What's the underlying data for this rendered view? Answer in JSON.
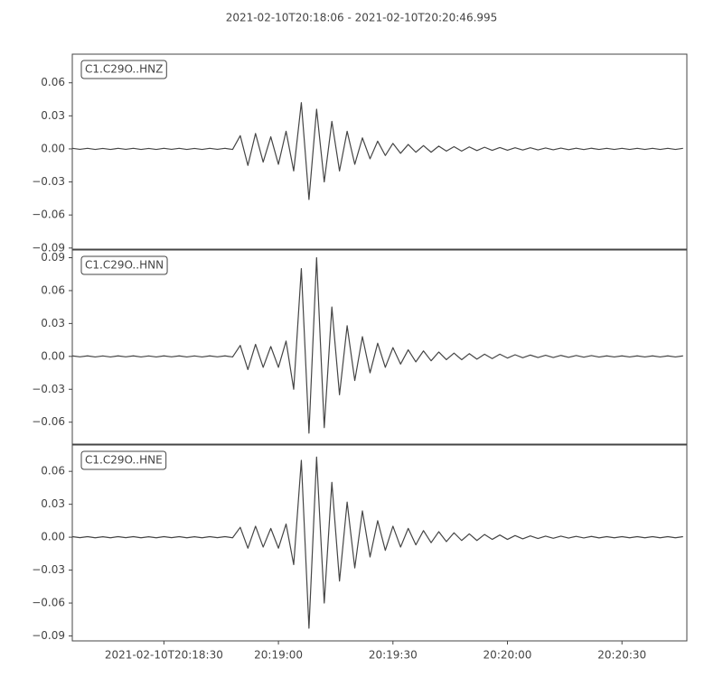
{
  "chart_data": [
    {
      "type": "line",
      "title": "2021-02-10T20:18:06  -  2021-02-10T20:20:46.995",
      "label": "C1.C29O..HNZ",
      "x": [
        0,
        2,
        4,
        6,
        8,
        10,
        12,
        14,
        16,
        18,
        20,
        22,
        24,
        26,
        28,
        30,
        32,
        34,
        36,
        38,
        40,
        42,
        44,
        46,
        48,
        50,
        52,
        54,
        56,
        58,
        60,
        62,
        64,
        66,
        68,
        70,
        72,
        74,
        76,
        78,
        80,
        82,
        84,
        86,
        88,
        90,
        92,
        94,
        96,
        98,
        100,
        102,
        104,
        106,
        108,
        110,
        112,
        114,
        116,
        118,
        120,
        122,
        124,
        126,
        128,
        130,
        132,
        134,
        136,
        138,
        140,
        142,
        144,
        146,
        148,
        150,
        152,
        154,
        156,
        158,
        160
      ],
      "series": [
        {
          "name": "C1.C29O..HNZ",
          "color": "#454545",
          "values": [
            0.0005,
            -0.0004,
            0.0005,
            -0.0005,
            0.0004,
            -0.0005,
            0.0005,
            -0.0004,
            0.0005,
            -0.0005,
            0.0004,
            -0.0005,
            0.0005,
            -0.0004,
            0.0005,
            -0.0005,
            0.0004,
            -0.0005,
            0.0005,
            -0.0004,
            0.0005,
            -0.0005,
            0.012,
            -0.015,
            0.014,
            -0.012,
            0.011,
            -0.014,
            0.016,
            -0.02,
            0.042,
            -0.046,
            0.036,
            -0.03,
            0.025,
            -0.02,
            0.016,
            -0.014,
            0.01,
            -0.009,
            0.007,
            -0.006,
            0.005,
            -0.004,
            0.004,
            -0.003,
            0.003,
            -0.003,
            0.0025,
            -0.002,
            0.002,
            -0.002,
            0.0018,
            -0.0015,
            0.0015,
            -0.0013,
            0.0012,
            -0.0012,
            0.001,
            -0.001,
            0.001,
            -0.0009,
            0.0008,
            -0.0008,
            0.0007,
            -0.0007,
            0.0006,
            -0.0006,
            0.0006,
            -0.0005,
            0.0005,
            -0.0005,
            0.0005,
            -0.0005,
            0.0005,
            -0.0005,
            0.0005,
            -0.0005,
            0.0005,
            -0.0005,
            0.0005
          ]
        }
      ],
      "xlim": [
        0,
        160.995
      ],
      "ylim": [
        -0.091,
        0.086
      ],
      "yticks": [
        {
          "value": -0.09,
          "label": "−0.09"
        },
        {
          "value": -0.06,
          "label": "−0.06"
        },
        {
          "value": -0.03,
          "label": "−0.03"
        },
        {
          "value": 0,
          "label": "0.00"
        },
        {
          "value": 0.03,
          "label": "0.03"
        },
        {
          "value": 0.06,
          "label": "0.06"
        }
      ]
    },
    {
      "type": "line",
      "label": "C1.C29O..HNN",
      "x": [
        0,
        2,
        4,
        6,
        8,
        10,
        12,
        14,
        16,
        18,
        20,
        22,
        24,
        26,
        28,
        30,
        32,
        34,
        36,
        38,
        40,
        42,
        44,
        46,
        48,
        50,
        52,
        54,
        56,
        58,
        60,
        62,
        64,
        66,
        68,
        70,
        72,
        74,
        76,
        78,
        80,
        82,
        84,
        86,
        88,
        90,
        92,
        94,
        96,
        98,
        100,
        102,
        104,
        106,
        108,
        110,
        112,
        114,
        116,
        118,
        120,
        122,
        124,
        126,
        128,
        130,
        132,
        134,
        136,
        138,
        140,
        142,
        144,
        146,
        148,
        150,
        152,
        154,
        156,
        158,
        160
      ],
      "series": [
        {
          "name": "C1.C29O..HNN",
          "color": "#454545",
          "values": [
            0.0005,
            -0.0004,
            0.0005,
            -0.0005,
            0.0004,
            -0.0005,
            0.0005,
            -0.0004,
            0.0005,
            -0.0005,
            0.0004,
            -0.0005,
            0.0005,
            -0.0004,
            0.0005,
            -0.0005,
            0.0004,
            -0.0005,
            0.0005,
            -0.0004,
            0.0005,
            -0.0005,
            0.01,
            -0.012,
            0.011,
            -0.01,
            0.009,
            -0.01,
            0.014,
            -0.03,
            0.08,
            -0.07,
            0.09,
            -0.065,
            0.045,
            -0.035,
            0.028,
            -0.022,
            0.018,
            -0.015,
            0.012,
            -0.01,
            0.008,
            -0.007,
            0.006,
            -0.005,
            0.005,
            -0.004,
            0.004,
            -0.003,
            0.003,
            -0.003,
            0.0025,
            -0.0025,
            0.002,
            -0.002,
            0.002,
            -0.0015,
            0.0015,
            -0.0012,
            0.0012,
            -0.001,
            0.001,
            -0.001,
            0.0009,
            -0.0008,
            0.0008,
            -0.0007,
            0.0007,
            -0.0006,
            0.0005,
            -0.0005,
            0.0005,
            -0.0005,
            0.0005,
            -0.0005,
            0.0005,
            -0.0005,
            0.0005,
            -0.0005,
            0.0005
          ]
        }
      ],
      "xlim": [
        0,
        160.995
      ],
      "ylim": [
        -0.08,
        0.097
      ],
      "yticks": [
        {
          "value": -0.06,
          "label": "−0.06"
        },
        {
          "value": -0.03,
          "label": "−0.03"
        },
        {
          "value": 0,
          "label": "0.00"
        },
        {
          "value": 0.03,
          "label": "0.03"
        },
        {
          "value": 0.06,
          "label": "0.06"
        },
        {
          "value": 0.09,
          "label": "0.09"
        }
      ]
    },
    {
      "type": "line",
      "label": "C1.C29O..HNE",
      "x": [
        0,
        2,
        4,
        6,
        8,
        10,
        12,
        14,
        16,
        18,
        20,
        22,
        24,
        26,
        28,
        30,
        32,
        34,
        36,
        38,
        40,
        42,
        44,
        46,
        48,
        50,
        52,
        54,
        56,
        58,
        60,
        62,
        64,
        66,
        68,
        70,
        72,
        74,
        76,
        78,
        80,
        82,
        84,
        86,
        88,
        90,
        92,
        94,
        96,
        98,
        100,
        102,
        104,
        106,
        108,
        110,
        112,
        114,
        116,
        118,
        120,
        122,
        124,
        126,
        128,
        130,
        132,
        134,
        136,
        138,
        140,
        142,
        144,
        146,
        148,
        150,
        152,
        154,
        156,
        158,
        160
      ],
      "series": [
        {
          "name": "C1.C29O..HNE",
          "color": "#454545",
          "values": [
            0.0005,
            -0.0004,
            0.0005,
            -0.0005,
            0.0004,
            -0.0005,
            0.0005,
            -0.0004,
            0.0005,
            -0.0005,
            0.0004,
            -0.0005,
            0.0005,
            -0.0004,
            0.0005,
            -0.0005,
            0.0004,
            -0.0005,
            0.0005,
            -0.0004,
            0.0005,
            -0.0005,
            0.009,
            -0.01,
            0.01,
            -0.009,
            0.008,
            -0.01,
            0.012,
            -0.025,
            0.07,
            -0.083,
            0.073,
            -0.06,
            0.05,
            -0.04,
            0.032,
            -0.028,
            0.024,
            -0.018,
            0.015,
            -0.012,
            0.01,
            -0.009,
            0.008,
            -0.007,
            0.006,
            -0.005,
            0.005,
            -0.004,
            0.004,
            -0.003,
            0.003,
            -0.003,
            0.0025,
            -0.002,
            0.002,
            -0.002,
            0.0015,
            -0.0015,
            0.0012,
            -0.0012,
            0.001,
            -0.001,
            0.001,
            -0.0008,
            0.0008,
            -0.0007,
            0.0007,
            -0.0006,
            0.0005,
            -0.0005,
            0.0005,
            -0.0005,
            0.0005,
            -0.0005,
            0.0005,
            -0.0005,
            0.0005,
            -0.0005,
            0.0005
          ]
        }
      ],
      "xlim": [
        0,
        160.995
      ],
      "ylim": [
        -0.0945,
        0.084
      ],
      "yticks": [
        {
          "value": -0.09,
          "label": "−0.09"
        },
        {
          "value": -0.06,
          "label": "−0.06"
        },
        {
          "value": -0.03,
          "label": "−0.03"
        },
        {
          "value": 0,
          "label": "0.00"
        },
        {
          "value": 0.03,
          "label": "0.03"
        },
        {
          "value": 0.06,
          "label": "0.06"
        }
      ],
      "xticks": [
        {
          "value": 24,
          "label": "2021-02-10T20:18:30"
        },
        {
          "value": 54,
          "label": "20:19:00"
        },
        {
          "value": 84,
          "label": "20:19:30"
        },
        {
          "value": 114,
          "label": "20:20:00"
        },
        {
          "value": 144,
          "label": "20:20:30"
        }
      ]
    }
  ]
}
